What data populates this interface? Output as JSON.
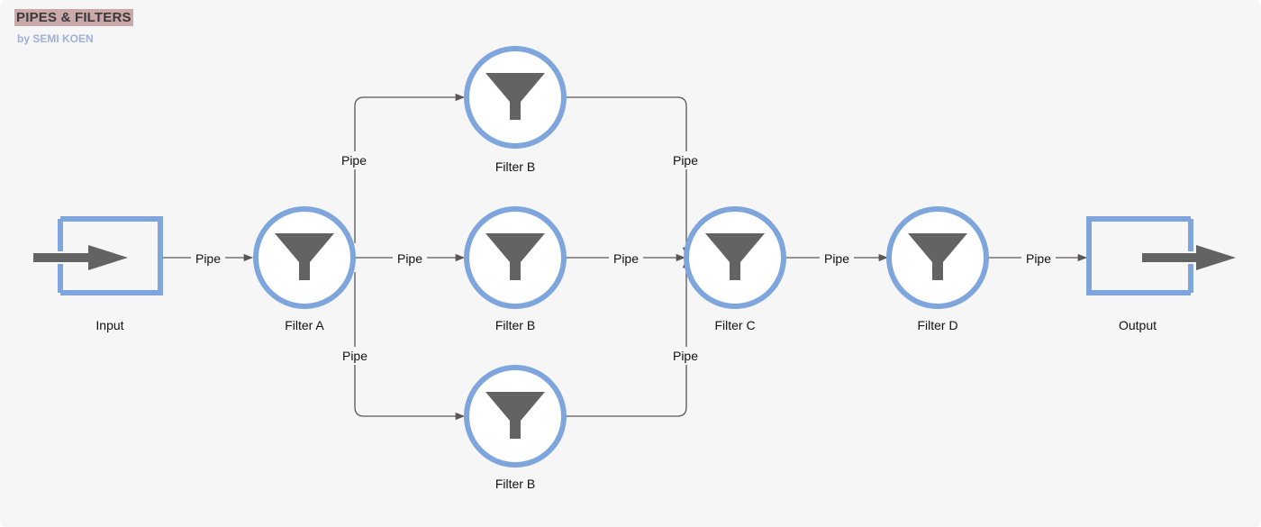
{
  "header": {
    "title": "PIPES & FILTERS",
    "subtitle": "by SEMI KOEN"
  },
  "nodes": {
    "input": "Input",
    "filter_a": "Filter A",
    "filter_b_top": "Filter B",
    "filter_b_mid": "Filter B",
    "filter_b_bot": "Filter B",
    "filter_c": "Filter C",
    "filter_d": "Filter D",
    "output": "Output"
  },
  "pipes": {
    "input_to_a": "Pipe",
    "a_to_b_top": "Pipe",
    "a_to_b_mid": "Pipe",
    "a_to_b_bot": "Pipe",
    "b_top_to_c": "Pipe",
    "b_mid_to_c": "Pipe",
    "b_bot_to_c": "Pipe",
    "c_to_d": "Pipe",
    "d_to_output": "Pipe"
  },
  "colors": {
    "background": "#f6f6f6",
    "node_ring": "#7ea6dc",
    "node_fill": "#ffffff",
    "icon": "#636363",
    "edge": "#5a5656",
    "title_highlight": "#caa9aa",
    "subtitle": "#9fb0d4"
  },
  "icons": {
    "filter": "funnel-icon",
    "input": "arrow-in-icon",
    "output": "arrow-out-icon"
  }
}
